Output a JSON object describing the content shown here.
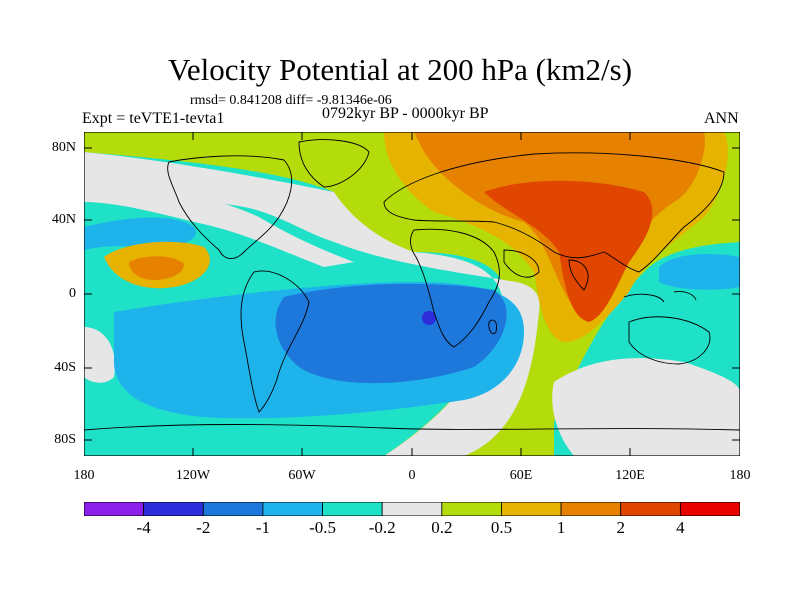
{
  "title": "Velocity Potential at 200 hPa (km2/s)",
  "stats": "rmsd= 0.841208 diff= -9.81346e-06",
  "expt": "Expt = teVTE1-tevta1",
  "period": "0792kyr BP - 0000kyr BP",
  "season": "ANN",
  "axes": {
    "lat_labels": [
      "80N",
      "40N",
      "0",
      "40S",
      "80S"
    ],
    "lon_labels": [
      "180",
      "120W",
      "60W",
      "0",
      "60E",
      "120E",
      "180"
    ]
  },
  "colorbar": {
    "labels": [
      "-4",
      "-2",
      "-1",
      "-0.5",
      "-0.2",
      "0.2",
      "0.5",
      "1",
      "2",
      "4"
    ],
    "colors": [
      "#8c1eeb",
      "#2d2ddc",
      "#1e78dc",
      "#1eb4eb",
      "#1ee1c8",
      "#e6e6e6",
      "#b4dc0a",
      "#e6b400",
      "#e68200",
      "#e04600",
      "#e60000"
    ]
  },
  "chart_data": {
    "type": "filled-contour-map",
    "variable": "Velocity Potential at 200 hPa",
    "units": "km2/s",
    "levels": [
      -4,
      -2,
      -1,
      -0.5,
      -0.2,
      0.2,
      0.5,
      1,
      2,
      4
    ],
    "xlim": [
      -180,
      180
    ],
    "ylim": [
      -90,
      90
    ],
    "features": [
      {
        "region": "South Atlantic",
        "approx_center": [
          -20,
          -25
        ],
        "range": "-2 to -1",
        "min": "<-4 near [10,-12]"
      },
      {
        "region": "Central Asia / Indian Ocean",
        "approx_center": [
          100,
          15
        ],
        "range": "1 to 2",
        "max": "2 to 4 near [100,-5]"
      },
      {
        "region": "Eastern North Pacific",
        "approx_center": [
          -130,
          10
        ],
        "range": "1 to 2"
      }
    ]
  }
}
